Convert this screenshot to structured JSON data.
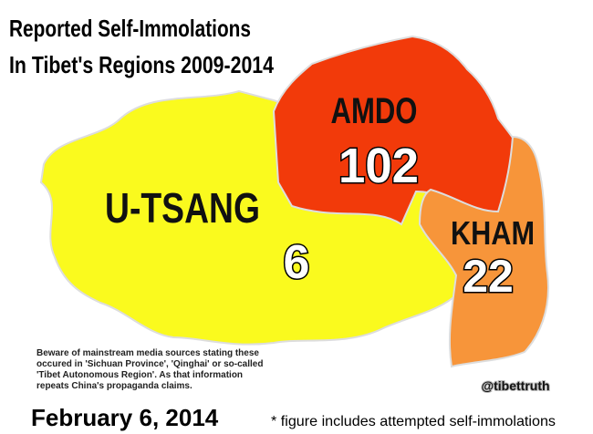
{
  "title": [
    "Reported Self-Immolations",
    "In Tibet's Regions 2009-2014"
  ],
  "regions": [
    {
      "name": "AMDO",
      "count": 102
    },
    {
      "name": "U-TSANG",
      "count": 6
    },
    {
      "name": "KHAM",
      "count": 22
    }
  ],
  "note": [
    "Beware of mainstream media sources stating these",
    "occured in 'Sichuan Province', 'Qinghai' or so-called",
    "'Tibet Autonomous Region'. As that information",
    "repeats China's propaganda claims."
  ],
  "handle": "@tibettruth",
  "date": "February 6, 2014",
  "footnote": "* figure includes attempted self-immolations"
}
